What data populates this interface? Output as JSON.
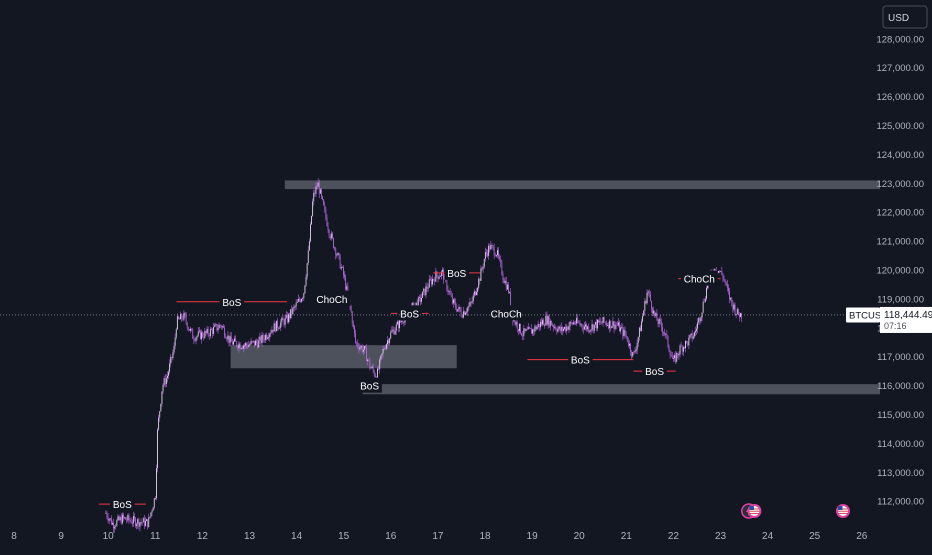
{
  "currency_button": "USD",
  "symbol": "BTCUSD",
  "last_price": "118,444.49",
  "countdown": "07:16",
  "colors": {
    "background": "#131722",
    "candle": "#b667e0",
    "structure_line": "#f23645",
    "zone": "#9598a1",
    "axis_text": "#b2b5be",
    "label_text": "#ffffff"
  },
  "chart_data": {
    "type": "candlestick",
    "x_ticks": [
      "8",
      "9",
      "10",
      "11",
      "12",
      "13",
      "14",
      "15",
      "16",
      "17",
      "18",
      "19",
      "20",
      "21",
      "22",
      "23",
      "24",
      "25",
      "26"
    ],
    "y_ticks": [
      "128,000.00",
      "127,000.00",
      "126,000.00",
      "125,000.00",
      "124,000.00",
      "123,000.00",
      "122,000.00",
      "121,000.00",
      "120,000.00",
      "119,000.00",
      "118,000.00",
      "117,000.00",
      "116,000.00",
      "115,000.00",
      "114,000.00",
      "113,000.00",
      "112,000.00"
    ],
    "ylim": [
      111500,
      128500
    ],
    "xlim": [
      7.75,
      26.5
    ],
    "price_path": [
      [
        9.95,
        111600
      ],
      [
        10.1,
        111200
      ],
      [
        10.3,
        111400
      ],
      [
        10.6,
        111300
      ],
      [
        10.85,
        111250
      ],
      [
        11.0,
        112200
      ],
      [
        11.05,
        114500
      ],
      [
        11.15,
        116000
      ],
      [
        11.25,
        116300
      ],
      [
        11.4,
        117300
      ],
      [
        11.45,
        118200
      ],
      [
        11.6,
        118400
      ],
      [
        11.8,
        117700
      ],
      [
        12.1,
        117800
      ],
      [
        12.4,
        118100
      ],
      [
        12.6,
        117500
      ],
      [
        12.9,
        117400
      ],
      [
        13.2,
        117500
      ],
      [
        13.5,
        118000
      ],
      [
        13.8,
        118300
      ],
      [
        14.0,
        118800
      ],
      [
        14.15,
        119200
      ],
      [
        14.25,
        120600
      ],
      [
        14.35,
        122500
      ],
      [
        14.45,
        123000
      ],
      [
        14.55,
        122300
      ],
      [
        14.7,
        121300
      ],
      [
        14.85,
        120600
      ],
      [
        15.0,
        119800
      ],
      [
        15.15,
        118600
      ],
      [
        15.25,
        117500
      ],
      [
        15.45,
        117200
      ],
      [
        15.55,
        116700
      ],
      [
        15.7,
        116300
      ],
      [
        15.85,
        117300
      ],
      [
        16.0,
        117800
      ],
      [
        16.2,
        118200
      ],
      [
        16.4,
        118600
      ],
      [
        16.6,
        118900
      ],
      [
        16.8,
        119500
      ],
      [
        16.95,
        119800
      ],
      [
        17.1,
        119900
      ],
      [
        17.3,
        118900
      ],
      [
        17.5,
        118500
      ],
      [
        17.7,
        118800
      ],
      [
        17.9,
        119800
      ],
      [
        18.0,
        120500
      ],
      [
        18.1,
        120800
      ],
      [
        18.25,
        120600
      ],
      [
        18.4,
        119700
      ],
      [
        18.5,
        119300
      ],
      [
        18.6,
        118300
      ],
      [
        18.8,
        117800
      ],
      [
        19.0,
        117900
      ],
      [
        19.3,
        118300
      ],
      [
        19.6,
        117900
      ],
      [
        19.9,
        118200
      ],
      [
        20.2,
        118000
      ],
      [
        20.5,
        118200
      ],
      [
        20.8,
        118100
      ],
      [
        21.0,
        117700
      ],
      [
        21.15,
        117000
      ],
      [
        21.3,
        118000
      ],
      [
        21.45,
        119300
      ],
      [
        21.6,
        118400
      ],
      [
        21.8,
        117900
      ],
      [
        22.0,
        116800
      ],
      [
        22.15,
        117300
      ],
      [
        22.3,
        117500
      ],
      [
        22.45,
        117800
      ],
      [
        22.6,
        118600
      ],
      [
        22.75,
        119700
      ],
      [
        22.9,
        120100
      ],
      [
        23.05,
        119800
      ],
      [
        23.2,
        119000
      ],
      [
        23.35,
        118500
      ],
      [
        23.45,
        118444
      ]
    ],
    "zones": [
      {
        "x1": 13.75,
        "x2": 26.5,
        "y_low": 122800,
        "y_high": 123100
      },
      {
        "x1": 12.6,
        "x2": 17.4,
        "y_low": 116600,
        "y_high": 117400
      },
      {
        "x1": 15.4,
        "x2": 26.5,
        "y_low": 115700,
        "y_high": 116050
      }
    ],
    "structure_lines": [
      {
        "x1": 9.8,
        "x2": 10.8,
        "y": 111900,
        "label": "BoS"
      },
      {
        "x1": 11.45,
        "x2": 13.8,
        "y": 118900,
        "label": "BoS"
      },
      {
        "x1": 14.4,
        "x2": 15.1,
        "y": 119000,
        "label": "ChoCh"
      },
      {
        "x1": 15.35,
        "x2": 15.75,
        "y": 116000,
        "label": "BoS"
      },
      {
        "x1": 16.0,
        "x2": 16.8,
        "y": 118500,
        "label": "BoS"
      },
      {
        "x1": 16.9,
        "x2": 17.9,
        "y": 119900,
        "label": "BoS"
      },
      {
        "x1": 18.1,
        "x2": 18.8,
        "y": 118500,
        "label": "ChoCh"
      },
      {
        "x1": 18.9,
        "x2": 21.15,
        "y": 116900,
        "label": "BoS"
      },
      {
        "x1": 21.15,
        "x2": 22.05,
        "y": 116500,
        "label": "BoS"
      },
      {
        "x1": 22.1,
        "x2": 23.0,
        "y": 119700,
        "label": "ChoCh"
      }
    ],
    "last_price": 118444.49
  },
  "event_markers": [
    {
      "x": 23.6,
      "kind": "flash"
    },
    {
      "x": 23.72,
      "kind": "us-flag"
    },
    {
      "x": 25.6,
      "kind": "us-flag"
    }
  ]
}
